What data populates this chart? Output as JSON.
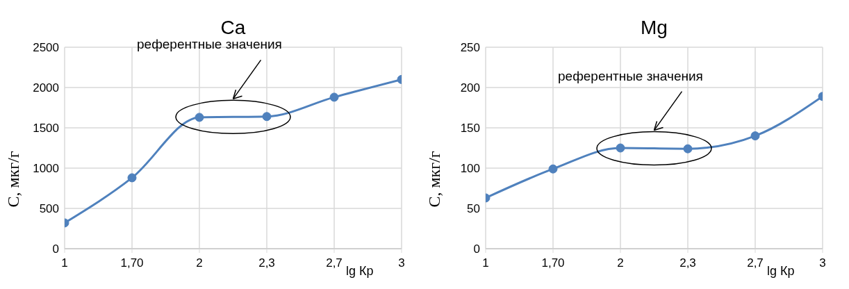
{
  "chart_data": [
    {
      "type": "line",
      "title": "Ca",
      "xlabel": "lg Кр",
      "ylabel": "С, мкг/г",
      "categories": [
        "1",
        "1,70",
        "2",
        "2,3",
        "2,7",
        "3"
      ],
      "series": [
        {
          "color": "#4f81bd",
          "values": [
            320,
            880,
            1630,
            1640,
            1880,
            2100
          ]
        }
      ],
      "ylim": [
        0,
        2500
      ],
      "yticks": [
        0,
        500,
        1000,
        1500,
        2000,
        2500
      ],
      "grid": true,
      "marker": "circle",
      "line_style": "solid",
      "annotations": [
        "референтные значения"
      ]
    },
    {
      "type": "line",
      "title": "Mg",
      "xlabel": "lg Кр",
      "ylabel": "С, мкг/г",
      "categories": [
        "1",
        "1,70",
        "2",
        "2,3",
        "2,7",
        "3"
      ],
      "series": [
        {
          "color": "#4f81bd",
          "values": [
            63,
            99,
            125,
            124,
            140,
            189
          ]
        }
      ],
      "ylim": [
        0,
        250
      ],
      "yticks": [
        0,
        50,
        100,
        150,
        200,
        250
      ],
      "grid": true,
      "marker": "circle",
      "line_style": "solid",
      "annotations": [
        "референтные значения"
      ]
    }
  ]
}
